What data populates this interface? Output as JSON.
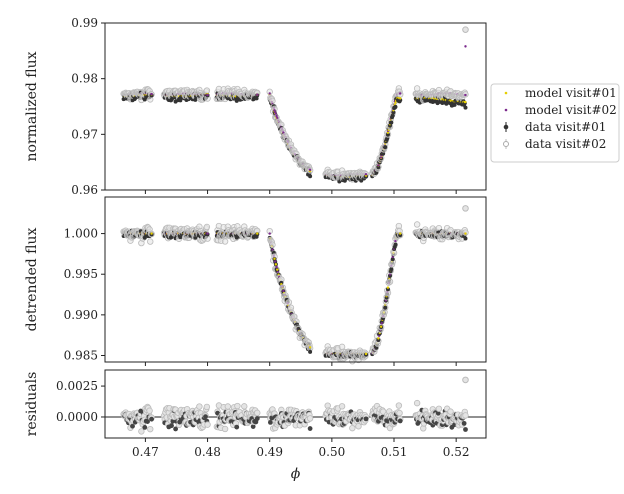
{
  "chart_data": {
    "type": "scatter",
    "xlabel": "ϕ",
    "xlim": [
      0.4635,
      0.5248
    ],
    "xticks": [
      "0.47",
      "0.48",
      "0.49",
      "0.50",
      "0.51",
      "0.52"
    ],
    "xtick_values": [
      0.47,
      0.48,
      0.49,
      0.5,
      0.51,
      0.52
    ],
    "panels": [
      {
        "ylabel": "normalized flux",
        "ylim": [
          0.96,
          0.99
        ],
        "yticks": [
          "0.96",
          "0.97",
          "0.98",
          "0.99"
        ],
        "ytick_values": [
          0.96,
          0.97,
          0.98,
          0.99
        ]
      },
      {
        "ylabel": "detrended flux",
        "ylim": [
          0.9842,
          1.0045
        ],
        "yticks": [
          "0.985",
          "0.990",
          "0.995",
          "1.000"
        ],
        "ytick_values": [
          0.985,
          0.99,
          0.995,
          1.0
        ]
      },
      {
        "ylabel": "residuals",
        "ylim": [
          -0.0017,
          0.0038
        ],
        "yticks": [
          "0.0000",
          "0.0025"
        ],
        "ytick_values": [
          0,
          0.0025
        ]
      }
    ],
    "legend": {
      "placement": "outside-right",
      "entries": [
        "model visit#01",
        "model visit#02",
        "data visit#01",
        "data visit#02"
      ]
    },
    "transit_model": {
      "depth": 0.0148,
      "ingress_start": 0.49,
      "ingress_end": 0.4985,
      "egress_start": 0.5062,
      "egress_end": 0.5105
    },
    "baseline": {
      "visit01": 0.977,
      "visit02": 0.9772
    },
    "segments": [
      [
        0.4665,
        0.471
      ],
      [
        0.473,
        0.48
      ],
      [
        0.4815,
        0.488
      ],
      [
        0.49,
        0.4965
      ],
      [
        0.499,
        0.5055
      ],
      [
        0.5065,
        0.511
      ],
      [
        0.5135,
        0.5215
      ]
    ],
    "outlier": {
      "x": 0.5215,
      "normalized_visit02": 0.9888,
      "model_visit02": 0.9858,
      "detrended": 1.0031,
      "residual": 0.003
    },
    "colors": {
      "model01": "#e6cf00",
      "model02": "#7b2a8c",
      "data01": "#333333",
      "data02": "#bbbbbb"
    }
  }
}
